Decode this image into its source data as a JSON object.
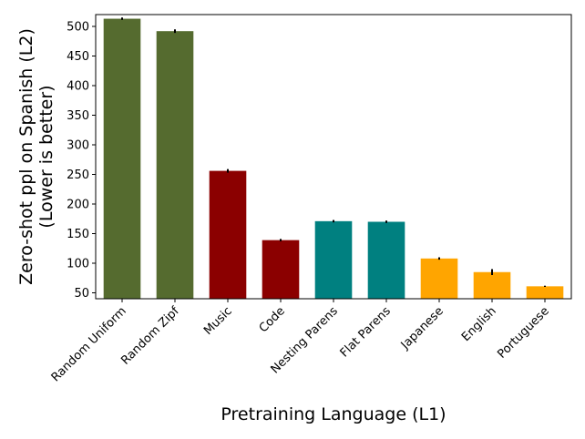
{
  "chart_data": {
    "type": "bar",
    "categories": [
      "Random Uniform",
      "Random Zipf",
      "Music",
      "Code",
      "Nesting Parens",
      "Flat Parens",
      "Japanese",
      "English",
      "Portuguese"
    ],
    "values": [
      513,
      492,
      256,
      139,
      171,
      170,
      108,
      85,
      61
    ],
    "errors": [
      2,
      3,
      3,
      2,
      2,
      2,
      2,
      5,
      1
    ],
    "colors": [
      "#556B2F",
      "#556B2F",
      "#8B0000",
      "#8B0000",
      "#008080",
      "#008080",
      "#FFA500",
      "#FFA500",
      "#FFA500"
    ],
    "error_color": "#000000",
    "xlabel": "Pretraining Language (L1)",
    "ylabel_lines": [
      "Zero-shot ppl on Spanish (L2)",
      "(Lower is better)"
    ],
    "ylim": [
      40,
      520
    ],
    "yticks": [
      50,
      100,
      150,
      200,
      250,
      300,
      350,
      400,
      450,
      500
    ],
    "grid": false,
    "legend": "none"
  }
}
